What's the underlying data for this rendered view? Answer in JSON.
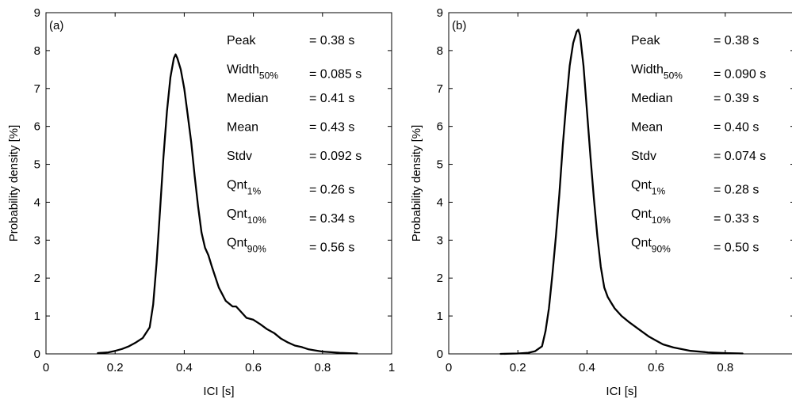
{
  "chart_data": [
    {
      "type": "line",
      "panel_label": "(a)",
      "xlabel": "ICI [s]",
      "ylabel": "Probability density [%]",
      "xlim": [
        0,
        1
      ],
      "ylim": [
        0,
        9
      ],
      "xticks": [
        0,
        0.2,
        0.4,
        0.6,
        0.8,
        1
      ],
      "xtick_labels": [
        "0",
        "0.2",
        "0.4",
        "0.6",
        "0.8",
        "1"
      ],
      "yticks": [
        0,
        1,
        2,
        3,
        4,
        5,
        6,
        7,
        8,
        9
      ],
      "ytick_labels": [
        "0",
        "1",
        "2",
        "3",
        "4",
        "5",
        "6",
        "7",
        "8",
        "9"
      ],
      "grid": false,
      "series": [
        {
          "color": "#000000",
          "x": [
            0.15,
            0.18,
            0.2,
            0.22,
            0.24,
            0.26,
            0.28,
            0.3,
            0.31,
            0.32,
            0.33,
            0.34,
            0.35,
            0.36,
            0.37,
            0.375,
            0.38,
            0.39,
            0.4,
            0.41,
            0.42,
            0.43,
            0.44,
            0.45,
            0.46,
            0.47,
            0.48,
            0.5,
            0.52,
            0.54,
            0.55,
            0.56,
            0.58,
            0.6,
            0.62,
            0.64,
            0.66,
            0.68,
            0.7,
            0.72,
            0.74,
            0.76,
            0.78,
            0.8,
            0.85,
            0.9
          ],
          "values": [
            0.02,
            0.04,
            0.08,
            0.13,
            0.2,
            0.3,
            0.42,
            0.7,
            1.3,
            2.4,
            3.8,
            5.2,
            6.4,
            7.3,
            7.8,
            7.9,
            7.8,
            7.5,
            7.0,
            6.3,
            5.6,
            4.7,
            3.9,
            3.2,
            2.8,
            2.6,
            2.3,
            1.75,
            1.4,
            1.25,
            1.25,
            1.15,
            0.95,
            0.9,
            0.78,
            0.65,
            0.55,
            0.4,
            0.3,
            0.22,
            0.18,
            0.12,
            0.09,
            0.06,
            0.03,
            0.01
          ]
        }
      ],
      "stats": [
        {
          "name": "Peak",
          "sub": "",
          "value": "= 0.38 s"
        },
        {
          "name": "Width",
          "sub": "50%",
          "value": "= 0.085 s"
        },
        {
          "name": "Median",
          "sub": "",
          "value": "= 0.41 s"
        },
        {
          "name": "Mean",
          "sub": "",
          "value": "= 0.43 s"
        },
        {
          "name": "Stdv",
          "sub": "",
          "value": "= 0.092 s"
        },
        {
          "name": "Qnt",
          "sub": "1%",
          "value": "= 0.26 s"
        },
        {
          "name": "Qnt",
          "sub": "10%",
          "value": "= 0.34 s"
        },
        {
          "name": "Qnt",
          "sub": "90%",
          "value": "= 0.56 s"
        }
      ]
    },
    {
      "type": "line",
      "panel_label": "(b)",
      "xlabel": "ICI [s]",
      "ylabel": "Probability density [%]",
      "xlim": [
        0,
        1
      ],
      "ylim": [
        0,
        9
      ],
      "xticks": [
        0,
        0.2,
        0.4,
        0.6,
        0.8
      ],
      "xtick_labels": [
        "0",
        "0.2",
        "0.4",
        "0.6",
        "0.8"
      ],
      "yticks": [
        0,
        1,
        2,
        3,
        4,
        5,
        6,
        7,
        8,
        9
      ],
      "ytick_labels": [
        "0",
        "1",
        "2",
        "3",
        "4",
        "5",
        "6",
        "7",
        "8",
        "9"
      ],
      "grid": false,
      "series": [
        {
          "color": "#000000",
          "x": [
            0.15,
            0.2,
            0.23,
            0.25,
            0.27,
            0.28,
            0.29,
            0.3,
            0.31,
            0.32,
            0.33,
            0.34,
            0.35,
            0.36,
            0.37,
            0.375,
            0.38,
            0.39,
            0.4,
            0.41,
            0.42,
            0.43,
            0.44,
            0.45,
            0.46,
            0.47,
            0.48,
            0.5,
            0.52,
            0.55,
            0.58,
            0.6,
            0.62,
            0.65,
            0.7,
            0.75,
            0.8,
            0.85
          ],
          "values": [
            0.0,
            0.01,
            0.03,
            0.07,
            0.2,
            0.6,
            1.2,
            2.1,
            3.1,
            4.2,
            5.5,
            6.6,
            7.6,
            8.2,
            8.5,
            8.55,
            8.4,
            7.6,
            6.4,
            5.2,
            4.1,
            3.1,
            2.3,
            1.75,
            1.5,
            1.35,
            1.2,
            1.0,
            0.85,
            0.65,
            0.45,
            0.35,
            0.25,
            0.17,
            0.08,
            0.04,
            0.02,
            0.01
          ]
        }
      ],
      "stats": [
        {
          "name": "Peak",
          "sub": "",
          "value": "= 0.38 s"
        },
        {
          "name": "Width",
          "sub": "50%",
          "value": "= 0.090 s"
        },
        {
          "name": "Median",
          "sub": "",
          "value": "= 0.39 s"
        },
        {
          "name": "Mean",
          "sub": "",
          "value": "= 0.40 s"
        },
        {
          "name": "Stdv",
          "sub": "",
          "value": "= 0.074 s"
        },
        {
          "name": "Qnt",
          "sub": "1%",
          "value": "= 0.28 s"
        },
        {
          "name": "Qnt",
          "sub": "10%",
          "value": "= 0.33 s"
        },
        {
          "name": "Qnt",
          "sub": "90%",
          "value": "= 0.50 s"
        }
      ]
    }
  ]
}
